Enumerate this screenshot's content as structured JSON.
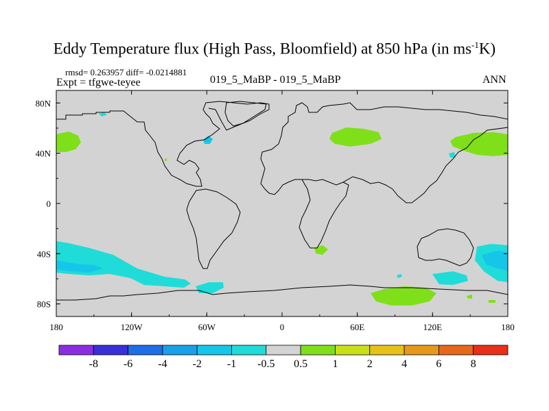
{
  "title": "Eddy Temperature flux (High Pass, Bloomfield) at 850 hPa (in ms",
  "title_sup": "-1",
  "title_end": "K)",
  "stats": "rmsd= 0.263957 diff= -0.0214881",
  "expt": "Expt = tfgwe-teyee",
  "cases": "019_5_MaBP - 019_5_MaBP",
  "season": "ANN",
  "lon_ticks": [
    {
      "lon": -180,
      "label": "180"
    },
    {
      "lon": -120,
      "label": "120W"
    },
    {
      "lon": -60,
      "label": "60W"
    },
    {
      "lon": 0,
      "label": "0"
    },
    {
      "lon": 60,
      "label": "60E"
    },
    {
      "lon": 120,
      "label": "120E"
    },
    {
      "lon": 180,
      "label": "180"
    }
  ],
  "lat_ticks": [
    {
      "lat": 80,
      "label": "80N"
    },
    {
      "lat": 40,
      "label": "40N"
    },
    {
      "lat": 0,
      "label": "0"
    },
    {
      "lat": -40,
      "label": "40S"
    },
    {
      "lat": -80,
      "label": "80S"
    }
  ],
  "colorbar": {
    "colors": [
      "#8b2ee0",
      "#3a30d8",
      "#1e6ee6",
      "#1aa0e8",
      "#16c6e8",
      "#20dcd8",
      "#d3d3d3",
      "#7fe01a",
      "#c8e01a",
      "#e6c21a",
      "#e6981a",
      "#e6681a",
      "#e6301a"
    ],
    "labels": [
      "-8",
      "-6",
      "-4",
      "-2",
      "-1",
      "-0.5",
      "0.5",
      "1",
      "2",
      "4",
      "6",
      "8"
    ]
  },
  "colors": {
    "land_background": "#d3d3d3",
    "coast": "#000000",
    "neg_light": "#20dcd8",
    "neg_mid": "#16c6e8",
    "pos": "#7fe01a"
  }
}
